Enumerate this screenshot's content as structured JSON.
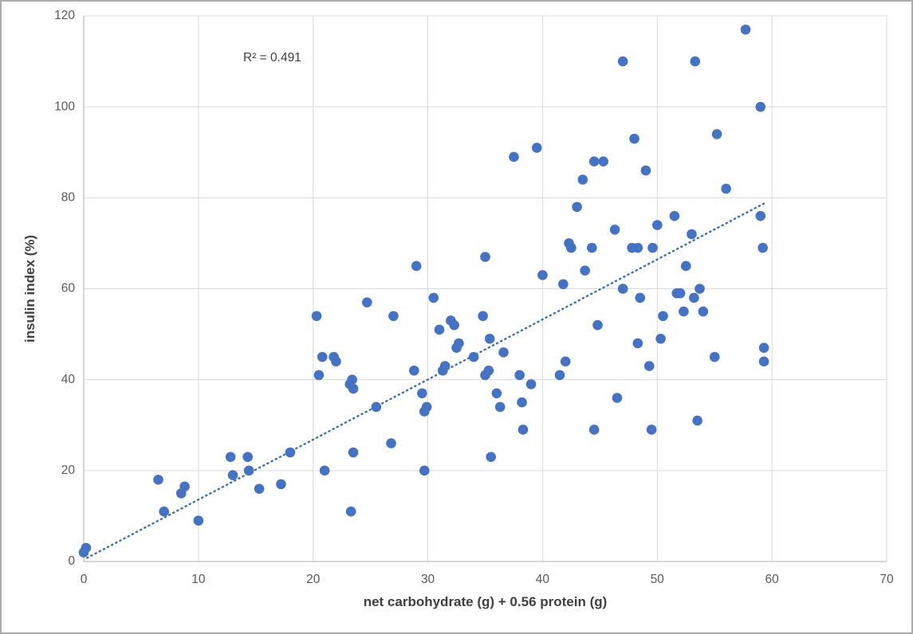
{
  "chart_data": {
    "type": "scatter",
    "title": "",
    "xlabel": "net carbohydrate (g) + 0.56 protein (g)",
    "ylabel": "insulin index (%)",
    "annotation": "R² = 0.491",
    "xlim": [
      0,
      70
    ],
    "ylim": [
      0,
      120
    ],
    "xticks": [
      0,
      10,
      20,
      30,
      40,
      50,
      60,
      70
    ],
    "yticks": [
      0,
      20,
      40,
      60,
      80,
      100,
      120
    ],
    "grid": true,
    "legend": "none",
    "marker_color": "#4472C4",
    "grid_color": "#D9D9D9",
    "axis_color": "#BFBFBF",
    "tick_color": "#595959",
    "trendline": {
      "style": "dotted",
      "color": "#3C6EB4",
      "x1": 0.3,
      "y1": 0.8,
      "x2": 59.5,
      "y2": 79.0
    },
    "points": [
      [
        0,
        2
      ],
      [
        0.2,
        3
      ],
      [
        6.5,
        18
      ],
      [
        7,
        11
      ],
      [
        8.5,
        15
      ],
      [
        8.8,
        16.5
      ],
      [
        10,
        9
      ],
      [
        12.8,
        23
      ],
      [
        13,
        19
      ],
      [
        14.3,
        23
      ],
      [
        14.4,
        20
      ],
      [
        15.3,
        16
      ],
      [
        17.2,
        17
      ],
      [
        18,
        24
      ],
      [
        20.3,
        54
      ],
      [
        20.5,
        41
      ],
      [
        20.8,
        45
      ],
      [
        21,
        20
      ],
      [
        21.8,
        45
      ],
      [
        22,
        44
      ],
      [
        23.2,
        39
      ],
      [
        23.4,
        40
      ],
      [
        23.5,
        38
      ],
      [
        23.5,
        24
      ],
      [
        23.3,
        11
      ],
      [
        24.7,
        57
      ],
      [
        25.5,
        34
      ],
      [
        26.8,
        26
      ],
      [
        27,
        54
      ],
      [
        28.8,
        42
      ],
      [
        29,
        65
      ],
      [
        29.5,
        37
      ],
      [
        29.7,
        33
      ],
      [
        29.9,
        34
      ],
      [
        29.7,
        20
      ],
      [
        30.5,
        58
      ],
      [
        31,
        51
      ],
      [
        31.3,
        42
      ],
      [
        31.5,
        43
      ],
      [
        32,
        53
      ],
      [
        32.3,
        52
      ],
      [
        32.5,
        47
      ],
      [
        32.7,
        48
      ],
      [
        34,
        45
      ],
      [
        34.8,
        54
      ],
      [
        35,
        67
      ],
      [
        35,
        41
      ],
      [
        35.3,
        42
      ],
      [
        35.4,
        49
      ],
      [
        35.5,
        23
      ],
      [
        36,
        37
      ],
      [
        36.3,
        34
      ],
      [
        36.6,
        46
      ],
      [
        37.5,
        89
      ],
      [
        38,
        41
      ],
      [
        38.2,
        35
      ],
      [
        38.3,
        29
      ],
      [
        39,
        39
      ],
      [
        39.5,
        91
      ],
      [
        40,
        63
      ],
      [
        41.5,
        41
      ],
      [
        41.8,
        61
      ],
      [
        42,
        44
      ],
      [
        42.3,
        70
      ],
      [
        42.5,
        69
      ],
      [
        43,
        78
      ],
      [
        43.5,
        84
      ],
      [
        43.7,
        64
      ],
      [
        44.3,
        69
      ],
      [
        44.5,
        88
      ],
      [
        44.5,
        29
      ],
      [
        44.8,
        52
      ],
      [
        45.3,
        88
      ],
      [
        46.3,
        73
      ],
      [
        46.5,
        36
      ],
      [
        47,
        110
      ],
      [
        47,
        60
      ],
      [
        47.8,
        69
      ],
      [
        48,
        93
      ],
      [
        48.3,
        69
      ],
      [
        48.3,
        48
      ],
      [
        48.5,
        58
      ],
      [
        49,
        86
      ],
      [
        49.3,
        43
      ],
      [
        49.5,
        29
      ],
      [
        49.6,
        69
      ],
      [
        50,
        74
      ],
      [
        50.3,
        49
      ],
      [
        50.5,
        54
      ],
      [
        51.5,
        76
      ],
      [
        51.7,
        59
      ],
      [
        52,
        59
      ],
      [
        52.3,
        55
      ],
      [
        52.5,
        65
      ],
      [
        53,
        72
      ],
      [
        53.2,
        58
      ],
      [
        53.3,
        110
      ],
      [
        53.5,
        31
      ],
      [
        53.7,
        60
      ],
      [
        54,
        55
      ],
      [
        55,
        45
      ],
      [
        55.2,
        94
      ],
      [
        56,
        82
      ],
      [
        57.7,
        117
      ],
      [
        59,
        100
      ],
      [
        59,
        76
      ],
      [
        59.2,
        69
      ],
      [
        59.3,
        47
      ],
      [
        59.3,
        44
      ]
    ]
  }
}
